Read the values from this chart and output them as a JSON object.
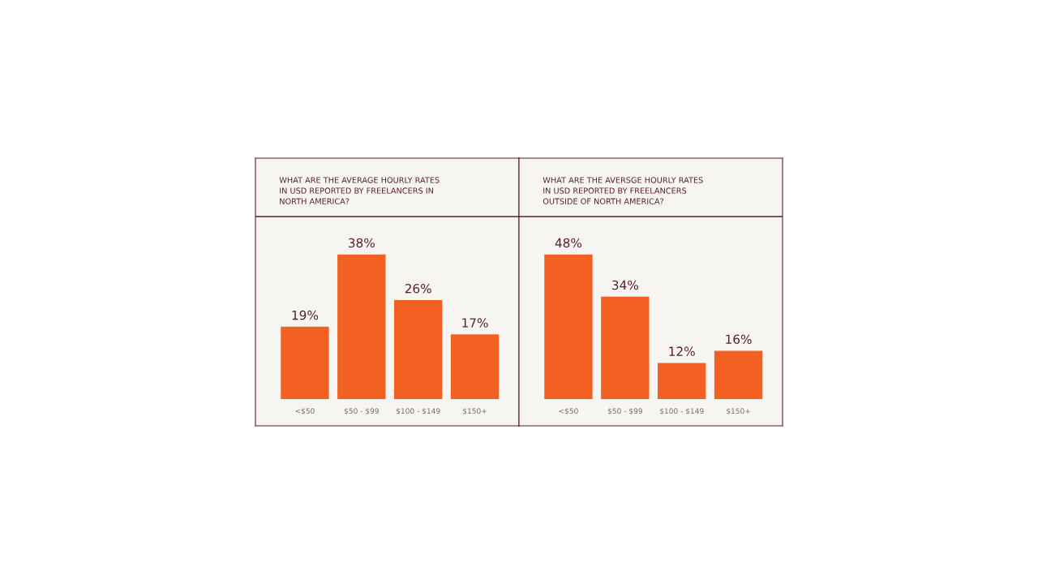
{
  "chart_data": [
    {
      "type": "bar",
      "title": "WHAT ARE THE AVERAGE HOURLY RATES\nIN USD REPORTED BY FREELANCERS IN\nNORTH AMERICA?",
      "categories": [
        "<$50",
        "$50 - $99",
        "$100 - $149",
        "$150+"
      ],
      "values": [
        19,
        38,
        26,
        17
      ],
      "color": "#f26122",
      "data_labels": true,
      "value_labels": [
        "19%",
        "38%",
        "26%",
        "17%"
      ],
      "grid": false
    },
    {
      "type": "bar",
      "title": "WHAT ARE THE AVERSGE HOURLY RATES\nIN USD REPORTED BY FREELANCERS\nOUTSIDE OF NORTH AMERICA?",
      "categories": [
        "<$50",
        "$50 - $99",
        "$100 - $149",
        "$150+"
      ],
      "values": [
        48,
        34,
        12,
        16
      ],
      "color": "#f26122",
      "data_labels": true,
      "value_labels": [
        "48%",
        "34%",
        "12%",
        "16%"
      ],
      "grid": false
    }
  ]
}
